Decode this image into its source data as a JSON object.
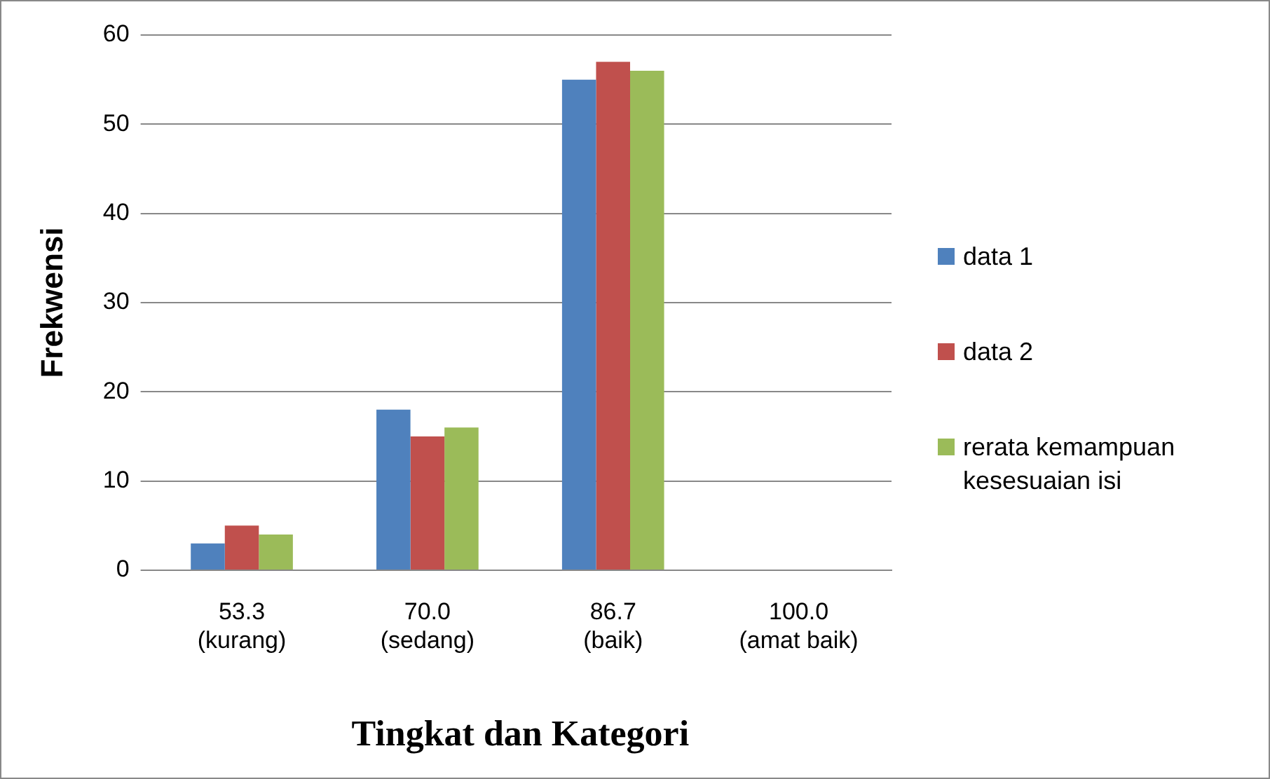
{
  "chart_data": {
    "type": "bar",
    "xlabel": "Tingkat dan Kategori",
    "ylabel": "Frekwensi",
    "categories": [
      "53.3\n(kurang)",
      "70.0\n(sedang)",
      "86.7\n(baik)",
      "100.0\n(amat baik)"
    ],
    "series": [
      {
        "name": "data 1",
        "color": "#4f81bd",
        "values": [
          3,
          18,
          55,
          0
        ]
      },
      {
        "name": "data 2",
        "color": "#c0504d",
        "values": [
          5,
          15,
          57,
          0
        ]
      },
      {
        "name": "rerata kemampuan kesesuaian isi",
        "color": "#9bbb59",
        "values": [
          4,
          16,
          56,
          0
        ]
      }
    ],
    "ylim": [
      0,
      60
    ],
    "yticks": [
      0,
      10,
      20,
      30,
      40,
      50,
      60
    ],
    "grid": "y",
    "legend": "right"
  }
}
